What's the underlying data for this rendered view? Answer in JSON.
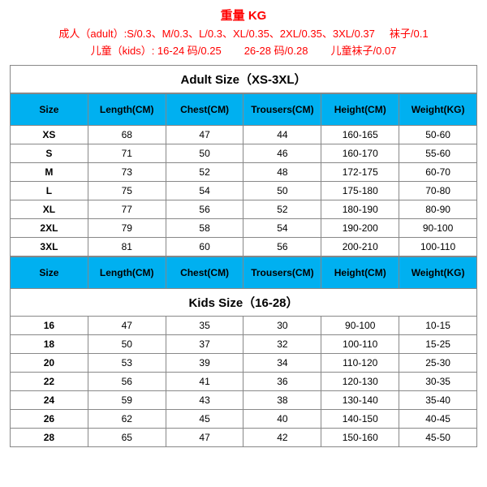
{
  "header": {
    "title": "重量 KG",
    "line1_parts": [
      "成人（adult）:S/0.3、M/0.3、L/0.3、XL/0.35、2XL/0.35、3XL/0.37",
      "袜子/0.1"
    ],
    "line2_parts": [
      "儿童（kids）: 16-24 码/0.25",
      "26-28 码/0.28",
      "儿童袜子/0.07"
    ]
  },
  "adult": {
    "title": "Adult Size（XS-3XL）",
    "columns": [
      "Size",
      "Length(CM)",
      "Chest(CM)",
      "Trousers(CM)",
      "Height(CM)",
      "Weight(KG)"
    ],
    "rows": [
      [
        "XS",
        "68",
        "47",
        "44",
        "160-165",
        "50-60"
      ],
      [
        "S",
        "71",
        "50",
        "46",
        "160-170",
        "55-60"
      ],
      [
        "M",
        "73",
        "52",
        "48",
        "172-175",
        "60-70"
      ],
      [
        "L",
        "75",
        "54",
        "50",
        "175-180",
        "70-80"
      ],
      [
        "XL",
        "77",
        "56",
        "52",
        "180-190",
        "80-90"
      ],
      [
        "2XL",
        "79",
        "58",
        "54",
        "190-200",
        "90-100"
      ],
      [
        "3XL",
        "81",
        "60",
        "56",
        "200-210",
        "100-110"
      ]
    ]
  },
  "kids": {
    "title": "Kids Size（16-28）",
    "columns": [
      "Size",
      "Length(CM)",
      "Chest(CM)",
      "Trousers(CM)",
      "Height(CM)",
      "Weight(KG)"
    ],
    "rows": [
      [
        "16",
        "47",
        "35",
        "30",
        "90-100",
        "10-15"
      ],
      [
        "18",
        "50",
        "37",
        "32",
        "100-110",
        "15-25"
      ],
      [
        "20",
        "53",
        "39",
        "34",
        "110-120",
        "25-30"
      ],
      [
        "22",
        "56",
        "41",
        "36",
        "120-130",
        "30-35"
      ],
      [
        "24",
        "59",
        "43",
        "38",
        "130-140",
        "35-40"
      ],
      [
        "26",
        "62",
        "45",
        "40",
        "140-150",
        "40-45"
      ],
      [
        "28",
        "65",
        "47",
        "42",
        "150-160",
        "45-50"
      ]
    ]
  },
  "style": {
    "header_color": "#ff0000",
    "th_bg": "#00b0f0",
    "border_color": "#888888",
    "text_color": "#000000",
    "bg_color": "#ffffff"
  }
}
